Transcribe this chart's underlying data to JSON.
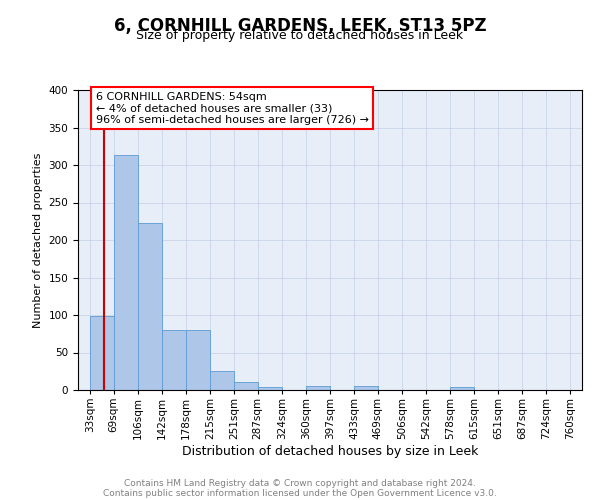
{
  "title": "6, CORNHILL GARDENS, LEEK, ST13 5PZ",
  "subtitle": "Size of property relative to detached houses in Leek",
  "xlabel": "Distribution of detached houses by size in Leek",
  "ylabel": "Number of detached properties",
  "bin_labels": [
    "33sqm",
    "69sqm",
    "106sqm",
    "142sqm",
    "178sqm",
    "215sqm",
    "251sqm",
    "287sqm",
    "324sqm",
    "360sqm",
    "397sqm",
    "433sqm",
    "469sqm",
    "506sqm",
    "542sqm",
    "578sqm",
    "615sqm",
    "651sqm",
    "687sqm",
    "724sqm",
    "760sqm"
  ],
  "bin_edges": [
    33,
    69,
    106,
    142,
    178,
    215,
    251,
    287,
    324,
    360,
    397,
    433,
    469,
    506,
    542,
    578,
    615,
    651,
    687,
    724,
    760
  ],
  "bar_heights": [
    99,
    313,
    223,
    80,
    80,
    25,
    11,
    4,
    0,
    5,
    0,
    5,
    0,
    0,
    0,
    4,
    0,
    0,
    0,
    0,
    3
  ],
  "bar_color": "#aec6e8",
  "bar_edgecolor": "#5b9bd5",
  "grid_color": "#c8d4e8",
  "bg_color": "#e8eef8",
  "property_line_x": 54,
  "property_line_color": "#cc0000",
  "annotation_line1": "6 CORNHILL GARDENS: 54sqm",
  "annotation_line2": "← 4% of detached houses are smaller (33)",
  "annotation_line3": "96% of semi-detached houses are larger (726) →",
  "ylim": [
    0,
    400
  ],
  "yticks": [
    0,
    50,
    100,
    150,
    200,
    250,
    300,
    350,
    400
  ],
  "footer_line1": "Contains HM Land Registry data © Crown copyright and database right 2024.",
  "footer_line2": "Contains public sector information licensed under the Open Government Licence v3.0.",
  "title_fontsize": 12,
  "subtitle_fontsize": 9,
  "xlabel_fontsize": 9,
  "ylabel_fontsize": 8,
  "tick_fontsize": 7.5,
  "footer_fontsize": 6.5,
  "ann_fontsize": 8
}
